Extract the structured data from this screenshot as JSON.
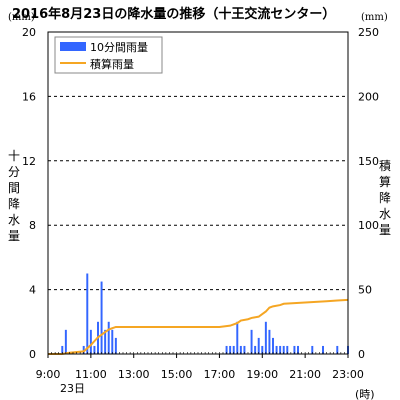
{
  "chart_data": {
    "type": "bar",
    "title": "2016年8月23日の降水量の推移（十王交流センター）",
    "ylabel": "十分間降水量",
    "y2label": "積算降水量",
    "yunit": "(mm)",
    "y2unit": "(mm)",
    "ylim": [
      0,
      20
    ],
    "y2lim": [
      0,
      250
    ],
    "yticks": [
      0,
      4,
      8,
      12,
      16,
      20
    ],
    "y2ticks": [
      0,
      50,
      100,
      150,
      200,
      250
    ],
    "xlim_minutes": [
      540,
      1380
    ],
    "xticks": [
      "9:00",
      "11:00",
      "13:00",
      "15:00",
      "17:00",
      "19:00",
      "21:00",
      "23:00"
    ],
    "xunit": "(時)",
    "date_label": "23日",
    "grid": true,
    "legend_position": "top-left",
    "series": [
      {
        "name": "10分間雨量",
        "kind": "bar",
        "axis": "left",
        "color": "#3366ff",
        "times": [
          "9:40",
          "9:50",
          "10:00",
          "10:10",
          "10:20",
          "10:30",
          "10:40",
          "10:50",
          "11:00",
          "11:10",
          "11:20",
          "11:30",
          "11:40",
          "11:50",
          "12:00",
          "12:10",
          "12:20",
          "12:30",
          "12:40",
          "12:50",
          "13:00",
          "13:10",
          "13:20",
          "13:30",
          "13:40",
          "13:50",
          "14:00",
          "14:10",
          "14:20",
          "14:30",
          "14:40",
          "14:50",
          "15:00",
          "15:10",
          "15:20",
          "15:30",
          "15:40",
          "15:50",
          "16:00",
          "16:10",
          "16:20",
          "16:30",
          "16:40",
          "16:50",
          "17:00",
          "17:10",
          "17:20",
          "17:30",
          "17:40",
          "17:50",
          "18:00",
          "18:10",
          "18:20",
          "18:30",
          "18:40",
          "18:50",
          "19:00",
          "19:10",
          "19:20",
          "19:30",
          "19:40",
          "19:50",
          "20:00",
          "20:10",
          "20:20",
          "20:30",
          "20:40",
          "20:50",
          "21:00",
          "21:10",
          "21:20",
          "21:30",
          "21:40",
          "21:50",
          "22:00",
          "22:10",
          "22:20",
          "22:30",
          "22:40",
          "22:50",
          "23:00"
        ],
        "values": [
          0.5,
          1.5,
          0,
          0,
          0,
          0,
          0.5,
          5.0,
          1.5,
          0.5,
          2.0,
          4.5,
          1.5,
          2.0,
          1.5,
          1.0,
          0,
          0,
          0,
          0,
          0,
          0,
          0,
          0,
          0,
          0,
          0,
          0,
          0,
          0,
          0,
          0,
          0,
          0,
          0,
          0,
          0,
          0,
          0,
          0,
          0,
          0,
          0,
          0,
          0,
          0,
          0.5,
          0.5,
          0.5,
          2.0,
          0.5,
          0.5,
          0,
          1.5,
          0.5,
          1.0,
          0.5,
          2.0,
          1.5,
          1.0,
          0.5,
          0.5,
          0.5,
          0.5,
          0,
          0.5,
          0.5,
          0,
          0,
          0,
          0.5,
          0,
          0,
          0.5,
          0,
          0,
          0,
          0.5,
          0,
          0,
          0.5
        ]
      },
      {
        "name": "積算雨量",
        "kind": "line",
        "axis": "right",
        "color": "#f5a623",
        "times": [
          "9:00",
          "9:40",
          "10:00",
          "10:40",
          "11:00",
          "11:10",
          "11:20",
          "11:30",
          "11:40",
          "11:50",
          "12:00",
          "12:10",
          "12:30",
          "13:00",
          "14:00",
          "15:00",
          "16:00",
          "17:00",
          "17:30",
          "17:50",
          "18:00",
          "18:20",
          "18:30",
          "18:50",
          "19:00",
          "19:10",
          "19:20",
          "19:30",
          "19:50",
          "20:00",
          "20:30",
          "21:00",
          "21:30",
          "22:00",
          "22:30",
          "23:00"
        ],
        "values": [
          0,
          0,
          1,
          2,
          7,
          10,
          13,
          15,
          17,
          19,
          20,
          21,
          21,
          21,
          21,
          21,
          21,
          21,
          22,
          24,
          26,
          27,
          28,
          29,
          31,
          33,
          36,
          37,
          38,
          39,
          39.5,
          40,
          40.5,
          41,
          41.5,
          42
        ]
      }
    ]
  }
}
